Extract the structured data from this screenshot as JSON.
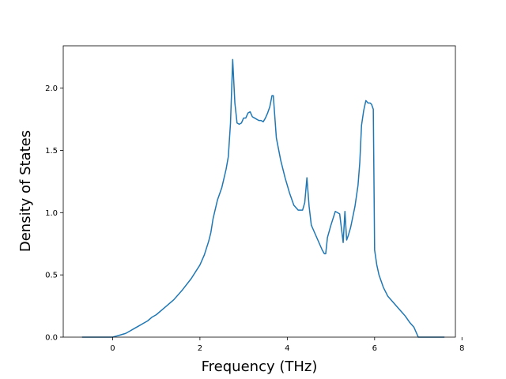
{
  "chart_data": {
    "type": "line",
    "title": "",
    "xlabel": "Frequency (THz)",
    "ylabel": "Density of States",
    "xlim": [
      -1.13,
      7.85
    ],
    "ylim": [
      0.0,
      2.34
    ],
    "xticks": [
      0,
      2,
      4,
      6,
      8
    ],
    "yticks": [
      0.0,
      0.5,
      1.0,
      1.5,
      2.0
    ],
    "xtick_labels": [
      "0",
      "2",
      "4",
      "6",
      "8"
    ],
    "ytick_labels": [
      "0.0",
      "0.5",
      "1.0",
      "1.5",
      "2.0"
    ],
    "grid": false,
    "legend": "none",
    "series": [
      {
        "color": "#1f77b4",
        "x": [
          -0.7,
          -0.3,
          0.0,
          0.1,
          0.2,
          0.3,
          0.4,
          0.5,
          0.6,
          0.7,
          0.8,
          0.9,
          1.0,
          1.2,
          1.4,
          1.6,
          1.8,
          2.0,
          2.1,
          2.2,
          2.25,
          2.3,
          2.4,
          2.5,
          2.6,
          2.65,
          2.7,
          2.75,
          2.8,
          2.85,
          2.9,
          2.95,
          3.0,
          3.05,
          3.1,
          3.15,
          3.2,
          3.25,
          3.3,
          3.35,
          3.4,
          3.45,
          3.5,
          3.55,
          3.6,
          3.65,
          3.68,
          3.75,
          3.85,
          3.95,
          4.05,
          4.15,
          4.25,
          4.35,
          4.4,
          4.45,
          4.5,
          4.55,
          4.6,
          4.7,
          4.8,
          4.85,
          4.88,
          4.92,
          5.0,
          5.1,
          5.2,
          5.28,
          5.32,
          5.36,
          5.4,
          5.45,
          5.55,
          5.62,
          5.66,
          5.7,
          5.75,
          5.8,
          5.85,
          5.9,
          5.93,
          5.97,
          6.0,
          6.05,
          6.1,
          6.2,
          6.3,
          6.5,
          6.6,
          6.7,
          6.8,
          6.9,
          6.95,
          7.0,
          7.3,
          7.6
        ],
        "y": [
          0.0,
          0.0,
          0.0,
          0.01,
          0.02,
          0.03,
          0.05,
          0.07,
          0.09,
          0.11,
          0.13,
          0.16,
          0.18,
          0.24,
          0.3,
          0.38,
          0.47,
          0.58,
          0.66,
          0.77,
          0.84,
          0.95,
          1.1,
          1.2,
          1.35,
          1.45,
          1.72,
          2.23,
          1.88,
          1.72,
          1.71,
          1.72,
          1.76,
          1.76,
          1.8,
          1.81,
          1.77,
          1.76,
          1.75,
          1.74,
          1.74,
          1.73,
          1.76,
          1.8,
          1.85,
          1.94,
          1.94,
          1.6,
          1.42,
          1.28,
          1.16,
          1.06,
          1.02,
          1.02,
          1.08,
          1.28,
          1.05,
          0.9,
          0.86,
          0.78,
          0.7,
          0.67,
          0.67,
          0.8,
          0.9,
          1.01,
          0.99,
          0.76,
          1.01,
          0.78,
          0.82,
          0.88,
          1.05,
          1.22,
          1.4,
          1.7,
          1.82,
          1.9,
          1.88,
          1.88,
          1.87,
          1.83,
          0.7,
          0.58,
          0.5,
          0.4,
          0.33,
          0.25,
          0.21,
          0.17,
          0.12,
          0.08,
          0.04,
          0.0,
          0.0,
          0.0
        ]
      }
    ]
  }
}
